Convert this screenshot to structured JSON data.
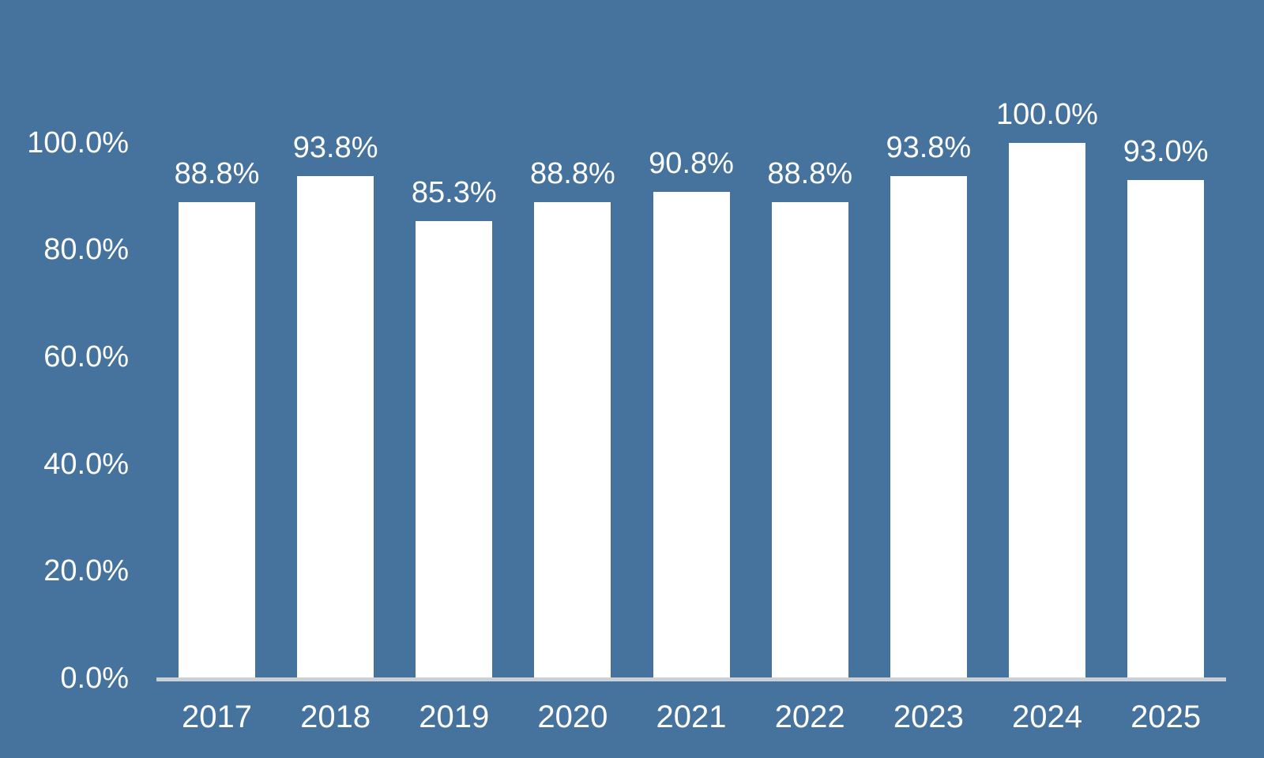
{
  "chart_data": {
    "type": "bar",
    "title": "",
    "xlabel": "",
    "ylabel": "",
    "categories": [
      "2017",
      "2018",
      "2019",
      "2020",
      "2021",
      "2022",
      "2023",
      "2024",
      "2025"
    ],
    "values": [
      88.8,
      93.8,
      85.3,
      88.8,
      90.8,
      88.8,
      93.8,
      100.0,
      93.0
    ],
    "bar_labels": [
      "88.8%",
      "93.8%",
      "85.3%",
      "88.8%",
      "90.8%",
      "88.8%",
      "93.8%",
      "100.0%",
      "93.0%"
    ],
    "y_ticks": [
      {
        "value": 100,
        "label": "100.0%"
      },
      {
        "value": 80,
        "label": "80.0%"
      },
      {
        "value": 60,
        "label": "60.0%"
      },
      {
        "value": 40,
        "label": "40.0%"
      },
      {
        "value": 20,
        "label": "20.0%"
      },
      {
        "value": 0,
        "label": "0.0%"
      }
    ],
    "ylim": [
      0,
      100
    ],
    "grid": false,
    "legend": "none",
    "colors": {
      "background": "#45739E",
      "bar": "#FFFFFF",
      "text": "#FFFFFF",
      "axis_line": "#CBD0D6"
    }
  }
}
